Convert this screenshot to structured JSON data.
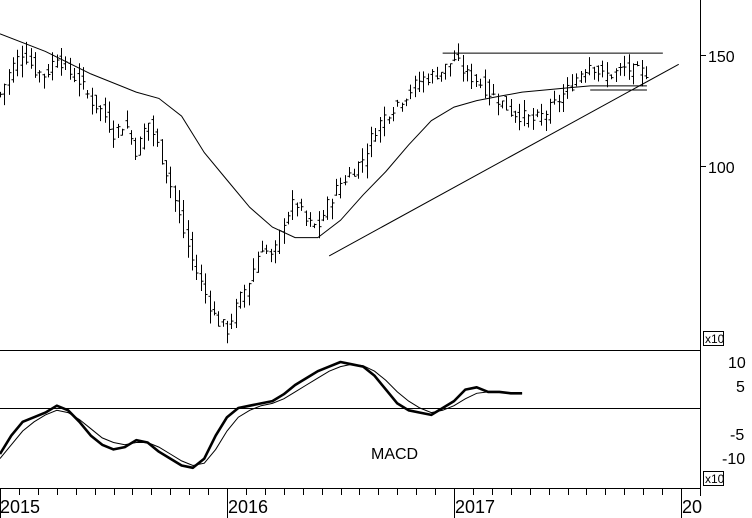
{
  "chart_data": [
    {
      "type": "ohlc",
      "scale": "log",
      "x_axis": {
        "labels": [
          "2015",
          "2016",
          "2017",
          "20"
        ],
        "range": [
          "2015-01",
          "2018-01"
        ]
      },
      "y_axis": {
        "ticks": [
          150,
          100
        ],
        "multiplier_label": "x10",
        "range": [
          47,
          175
        ]
      },
      "close_points": [
        [
          2015.0,
          130
        ],
        [
          2015.05,
          143
        ],
        [
          2015.1,
          152
        ],
        [
          2015.15,
          142
        ],
        [
          2015.2,
          139
        ],
        [
          2015.25,
          150
        ],
        [
          2015.3,
          141
        ],
        [
          2015.35,
          136
        ],
        [
          2015.4,
          127
        ],
        [
          2015.45,
          122
        ],
        [
          2015.5,
          113
        ],
        [
          2015.55,
          117
        ],
        [
          2015.6,
          105
        ],
        [
          2015.65,
          118
        ],
        [
          2015.7,
          106
        ],
        [
          2015.75,
          93
        ],
        [
          2015.8,
          80
        ],
        [
          2015.85,
          70
        ],
        [
          2015.9,
          63
        ],
        [
          2015.95,
          57
        ],
        [
          2016.0,
          55
        ],
        [
          2016.05,
          61
        ],
        [
          2016.1,
          66
        ],
        [
          2016.15,
          75
        ],
        [
          2016.2,
          71
        ],
        [
          2016.25,
          82
        ],
        [
          2016.3,
          88
        ],
        [
          2016.35,
          81
        ],
        [
          2016.4,
          80
        ],
        [
          2016.45,
          88
        ],
        [
          2016.5,
          94
        ],
        [
          2016.55,
          98
        ],
        [
          2016.6,
          103
        ],
        [
          2016.65,
          114
        ],
        [
          2016.7,
          121
        ],
        [
          2016.75,
          126
        ],
        [
          2016.8,
          131
        ],
        [
          2016.85,
          137
        ],
        [
          2016.9,
          139
        ],
        [
          2016.95,
          142
        ],
        [
          2017.0,
          148
        ],
        [
          2017.05,
          140
        ],
        [
          2017.1,
          137
        ],
        [
          2017.15,
          131
        ],
        [
          2017.2,
          127
        ],
        [
          2017.25,
          122
        ],
        [
          2017.3,
          120
        ],
        [
          2017.35,
          118
        ],
        [
          2017.4,
          121
        ],
        [
          2017.45,
          126
        ],
        [
          2017.5,
          132
        ],
        [
          2017.55,
          140
        ],
        [
          2017.6,
          146
        ],
        [
          2017.65,
          139
        ],
        [
          2017.7,
          140
        ],
        [
          2017.75,
          143
        ],
        [
          2017.8,
          141
        ],
        [
          2017.85,
          141
        ]
      ],
      "moving_average_points": [
        [
          2015.0,
          162
        ],
        [
          2015.2,
          152
        ],
        [
          2015.4,
          140
        ],
        [
          2015.6,
          131
        ],
        [
          2015.7,
          128
        ],
        [
          2015.8,
          120
        ],
        [
          2015.9,
          105
        ],
        [
          2016.0,
          95
        ],
        [
          2016.1,
          86
        ],
        [
          2016.2,
          80
        ],
        [
          2016.3,
          77
        ],
        [
          2016.4,
          77
        ],
        [
          2016.5,
          82
        ],
        [
          2016.6,
          90
        ],
        [
          2016.7,
          98
        ],
        [
          2016.8,
          108
        ],
        [
          2016.9,
          118
        ],
        [
          2017.0,
          124
        ],
        [
          2017.1,
          127
        ],
        [
          2017.2,
          129
        ],
        [
          2017.3,
          131
        ],
        [
          2017.4,
          132
        ],
        [
          2017.5,
          133
        ],
        [
          2017.6,
          134
        ],
        [
          2017.7,
          134
        ],
        [
          2017.8,
          134
        ],
        [
          2017.85,
          134
        ]
      ],
      "trend_lines": [
        {
          "from": [
            2016.45,
            72
          ],
          "to": [
            2017.99,
            145
          ]
        },
        {
          "from": [
            2016.95,
            151
          ],
          "to": [
            2017.92,
            151
          ]
        },
        {
          "from": [
            2017.6,
            132
          ],
          "to": [
            2017.85,
            132
          ]
        }
      ]
    },
    {
      "type": "line",
      "panel_label": "MACD",
      "y_axis": {
        "ticks": [
          10,
          5,
          -5,
          -10
        ],
        "multiplier_label": "x10",
        "range": [
          -14,
          12
        ]
      },
      "macd": [
        [
          2015.0,
          -10
        ],
        [
          2015.05,
          -6
        ],
        [
          2015.1,
          -3
        ],
        [
          2015.15,
          -2
        ],
        [
          2015.2,
          -1
        ],
        [
          2015.25,
          0.5
        ],
        [
          2015.3,
          -0.5
        ],
        [
          2015.35,
          -3
        ],
        [
          2015.4,
          -6
        ],
        [
          2015.45,
          -8
        ],
        [
          2015.5,
          -9
        ],
        [
          2015.55,
          -8.5
        ],
        [
          2015.6,
          -7
        ],
        [
          2015.65,
          -7.5
        ],
        [
          2015.7,
          -9.5
        ],
        [
          2015.75,
          -11
        ],
        [
          2015.8,
          -12.5
        ],
        [
          2015.85,
          -13
        ],
        [
          2015.9,
          -11
        ],
        [
          2015.95,
          -6
        ],
        [
          2016.0,
          -2
        ],
        [
          2016.05,
          0
        ],
        [
          2016.1,
          0.5
        ],
        [
          2016.15,
          1
        ],
        [
          2016.2,
          1.5
        ],
        [
          2016.25,
          3
        ],
        [
          2016.3,
          5
        ],
        [
          2016.35,
          6.5
        ],
        [
          2016.4,
          8
        ],
        [
          2016.45,
          9
        ],
        [
          2016.5,
          10
        ],
        [
          2016.55,
          9.5
        ],
        [
          2016.6,
          9
        ],
        [
          2016.65,
          7
        ],
        [
          2016.7,
          4
        ],
        [
          2016.75,
          1
        ],
        [
          2016.8,
          -0.5
        ],
        [
          2016.85,
          -1
        ],
        [
          2016.9,
          -1.5
        ],
        [
          2016.95,
          0
        ],
        [
          2017.0,
          1.5
        ],
        [
          2017.05,
          4
        ],
        [
          2017.1,
          4.5
        ],
        [
          2017.15,
          3.5
        ],
        [
          2017.2,
          3.5
        ],
        [
          2017.25,
          3.2
        ],
        [
          2017.3,
          3.2
        ]
      ],
      "signal": [
        [
          2015.0,
          -11
        ],
        [
          2015.05,
          -8
        ],
        [
          2015.1,
          -5
        ],
        [
          2015.15,
          -3
        ],
        [
          2015.2,
          -1.5
        ],
        [
          2015.25,
          -0.5
        ],
        [
          2015.3,
          -1
        ],
        [
          2015.35,
          -2.5
        ],
        [
          2015.4,
          -4.5
        ],
        [
          2015.45,
          -6.5
        ],
        [
          2015.5,
          -7.5
        ],
        [
          2015.55,
          -8
        ],
        [
          2015.6,
          -7.5
        ],
        [
          2015.65,
          -7.5
        ],
        [
          2015.7,
          -8.5
        ],
        [
          2015.75,
          -10
        ],
        [
          2015.8,
          -11.5
        ],
        [
          2015.85,
          -12.5
        ],
        [
          2015.9,
          -12
        ],
        [
          2015.95,
          -9
        ],
        [
          2016.0,
          -5
        ],
        [
          2016.05,
          -2
        ],
        [
          2016.1,
          -0.5
        ],
        [
          2016.15,
          0.5
        ],
        [
          2016.2,
          1
        ],
        [
          2016.25,
          2
        ],
        [
          2016.3,
          3.5
        ],
        [
          2016.35,
          5
        ],
        [
          2016.4,
          6.5
        ],
        [
          2016.45,
          8
        ],
        [
          2016.5,
          9
        ],
        [
          2016.55,
          9.5
        ],
        [
          2016.6,
          9.2
        ],
        [
          2016.65,
          8
        ],
        [
          2016.7,
          6
        ],
        [
          2016.75,
          3.5
        ],
        [
          2016.8,
          1.5
        ],
        [
          2016.85,
          0
        ],
        [
          2016.9,
          -1
        ],
        [
          2016.95,
          -0.5
        ],
        [
          2017.0,
          0.5
        ],
        [
          2017.05,
          2
        ],
        [
          2017.1,
          3.2
        ],
        [
          2017.15,
          3.5
        ],
        [
          2017.2,
          3.5
        ],
        [
          2017.25,
          3.3
        ],
        [
          2017.3,
          3.2
        ]
      ]
    }
  ]
}
